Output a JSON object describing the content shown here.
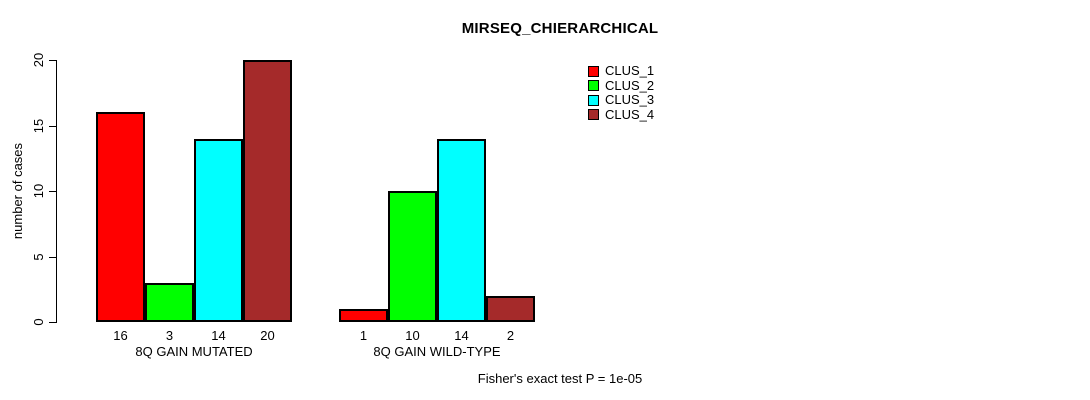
{
  "chart_data": {
    "type": "bar",
    "title": "MIRSEQ_CHIERARCHICAL",
    "xlabel": "",
    "ylabel": "number of cases",
    "ylim": [
      0,
      20
    ],
    "yticks": [
      0,
      5,
      10,
      15,
      20
    ],
    "grid": false,
    "legend_position": "top-right",
    "categories": [
      "8Q GAIN MUTATED",
      "8Q GAIN WILD-TYPE"
    ],
    "series": [
      {
        "name": "CLUS_1",
        "color": "#FF0000",
        "values": [
          16,
          1
        ]
      },
      {
        "name": "CLUS_2",
        "color": "#00FF00",
        "values": [
          3,
          10
        ]
      },
      {
        "name": "CLUS_3",
        "color": "#00FFFF",
        "values": [
          14,
          14
        ]
      },
      {
        "name": "CLUS_4",
        "color": "#A52A2A",
        "values": [
          20,
          2
        ]
      }
    ]
  },
  "footer": {
    "note": "Fisher's exact test P = 1e-05"
  }
}
